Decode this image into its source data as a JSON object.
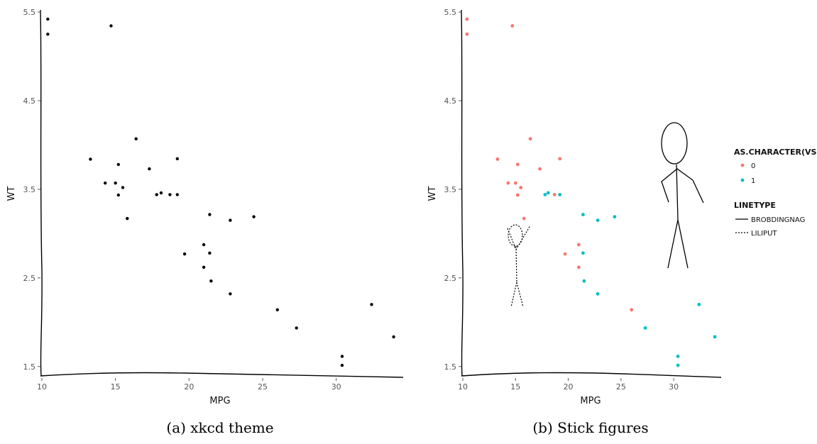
{
  "chart_data": [
    {
      "type": "scatter",
      "caption": "(a) xkcd theme",
      "xlabel": "MPG",
      "ylabel": "WT",
      "xticks": [
        "10",
        "15",
        "20",
        "25",
        "30"
      ],
      "yticks": [
        "1.5",
        "2.5",
        "3.5",
        "4.5",
        "5.5"
      ],
      "xlim": [
        10,
        34.5
      ],
      "ylim": [
        1.45,
        5.5
      ],
      "series": [
        {
          "color": "#000000",
          "points": [
            [
              10.4,
              5.42
            ],
            [
              10.4,
              5.25
            ],
            [
              14.7,
              5.345
            ],
            [
              13.3,
              3.84
            ],
            [
              14.3,
              3.57
            ],
            [
              15.0,
              3.57
            ],
            [
              15.2,
              3.78
            ],
            [
              15.2,
              3.435
            ],
            [
              15.5,
              3.52
            ],
            [
              15.8,
              3.17
            ],
            [
              16.4,
              4.07
            ],
            [
              17.3,
              3.73
            ],
            [
              17.8,
              3.44
            ],
            [
              18.1,
              3.46
            ],
            [
              18.7,
              3.44
            ],
            [
              19.2,
              3.44
            ],
            [
              19.2,
              3.845
            ],
            [
              19.7,
              2.77
            ],
            [
              21.0,
              2.875
            ],
            [
              21.0,
              2.62
            ],
            [
              21.4,
              3.215
            ],
            [
              21.4,
              2.78
            ],
            [
              21.5,
              2.465
            ],
            [
              22.8,
              3.15
            ],
            [
              22.8,
              2.32
            ],
            [
              24.4,
              3.19
            ],
            [
              26.0,
              2.14
            ],
            [
              27.3,
              1.935
            ],
            [
              30.4,
              1.615
            ],
            [
              30.4,
              1.513
            ],
            [
              32.4,
              2.2
            ],
            [
              33.9,
              1.835
            ]
          ]
        }
      ]
    },
    {
      "type": "scatter",
      "caption": "(b) Stick figures",
      "xlabel": "MPG",
      "ylabel": "WT",
      "xticks": [
        "10",
        "15",
        "20",
        "25",
        "30"
      ],
      "yticks": [
        "1.5",
        "2.5",
        "3.5",
        "4.5",
        "5.5"
      ],
      "xlim": [
        10,
        34.5
      ],
      "ylim": [
        1.45,
        5.5
      ],
      "legend": {
        "color_title": "AS.CHARACTER(VS)",
        "color_items": [
          {
            "label": "0",
            "color": "#f8766d"
          },
          {
            "label": "1",
            "color": "#00bfc4"
          }
        ],
        "linetype_title": "LINETYPE",
        "linetype_items": [
          {
            "label": "BROBDINGNAG",
            "style": "solid"
          },
          {
            "label": "LILIPUT",
            "style": "dotted"
          }
        ]
      },
      "series": [
        {
          "name": "0",
          "color": "#f8766d",
          "points": [
            [
              10.4,
              5.42
            ],
            [
              10.4,
              5.25
            ],
            [
              14.7,
              5.345
            ],
            [
              13.3,
              3.84
            ],
            [
              14.3,
              3.57
            ],
            [
              15.0,
              3.57
            ],
            [
              15.2,
              3.78
            ],
            [
              15.2,
              3.435
            ],
            [
              15.5,
              3.52
            ],
            [
              15.8,
              3.17
            ],
            [
              16.4,
              4.07
            ],
            [
              17.3,
              3.73
            ],
            [
              18.7,
              3.44
            ],
            [
              19.2,
              3.845
            ],
            [
              19.7,
              2.77
            ],
            [
              21.0,
              2.875
            ],
            [
              21.0,
              2.62
            ],
            [
              26.0,
              2.14
            ]
          ]
        },
        {
          "name": "1",
          "color": "#00bfc4",
          "points": [
            [
              17.8,
              3.44
            ],
            [
              18.1,
              3.46
            ],
            [
              19.2,
              3.44
            ],
            [
              21.4,
              3.215
            ],
            [
              21.4,
              2.78
            ],
            [
              21.5,
              2.465
            ],
            [
              22.8,
              3.15
            ],
            [
              22.8,
              2.32
            ],
            [
              24.4,
              3.19
            ],
            [
              27.3,
              1.935
            ],
            [
              30.4,
              1.615
            ],
            [
              30.4,
              1.513
            ],
            [
              32.4,
              2.2
            ],
            [
              33.9,
              1.835
            ]
          ]
        }
      ],
      "figures": [
        {
          "name": "liliput",
          "style": "dotted"
        },
        {
          "name": "brobdingnag",
          "style": "solid"
        }
      ]
    }
  ]
}
